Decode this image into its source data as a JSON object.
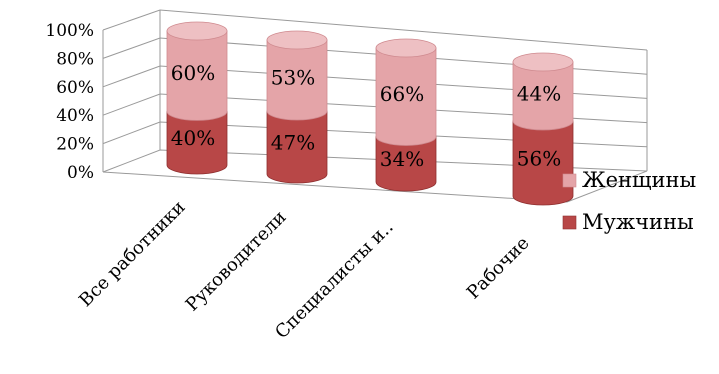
{
  "chart_data": {
    "type": "bar",
    "stacked": true,
    "percent": true,
    "style": "3d-cylinder",
    "categories": [
      "Все работники",
      "Руководители",
      "Специалисты и..",
      "Рабочие"
    ],
    "series": [
      {
        "name": "Мужчины",
        "values": [
          40,
          47,
          34,
          56
        ],
        "labels": [
          "40%",
          "47%",
          "34%",
          "56%"
        ]
      },
      {
        "name": "Женщины",
        "values": [
          60,
          53,
          66,
          44
        ],
        "labels": [
          "60%",
          "53%",
          "66%",
          "44%"
        ]
      }
    ],
    "yticks": [
      "0%",
      "20%",
      "40%",
      "60%",
      "80%",
      "100%"
    ],
    "ylim": [
      0,
      100
    ],
    "grid": true,
    "legend_position": "right",
    "colors": {
      "Мужчины": {
        "side": "#b84747",
        "top": "#c25a5a",
        "edge": "#8e2f2f"
      },
      "Женщины": {
        "side": "#e4a4a8",
        "top": "#eec0c3",
        "edge": "#cf8a8f"
      }
    }
  }
}
